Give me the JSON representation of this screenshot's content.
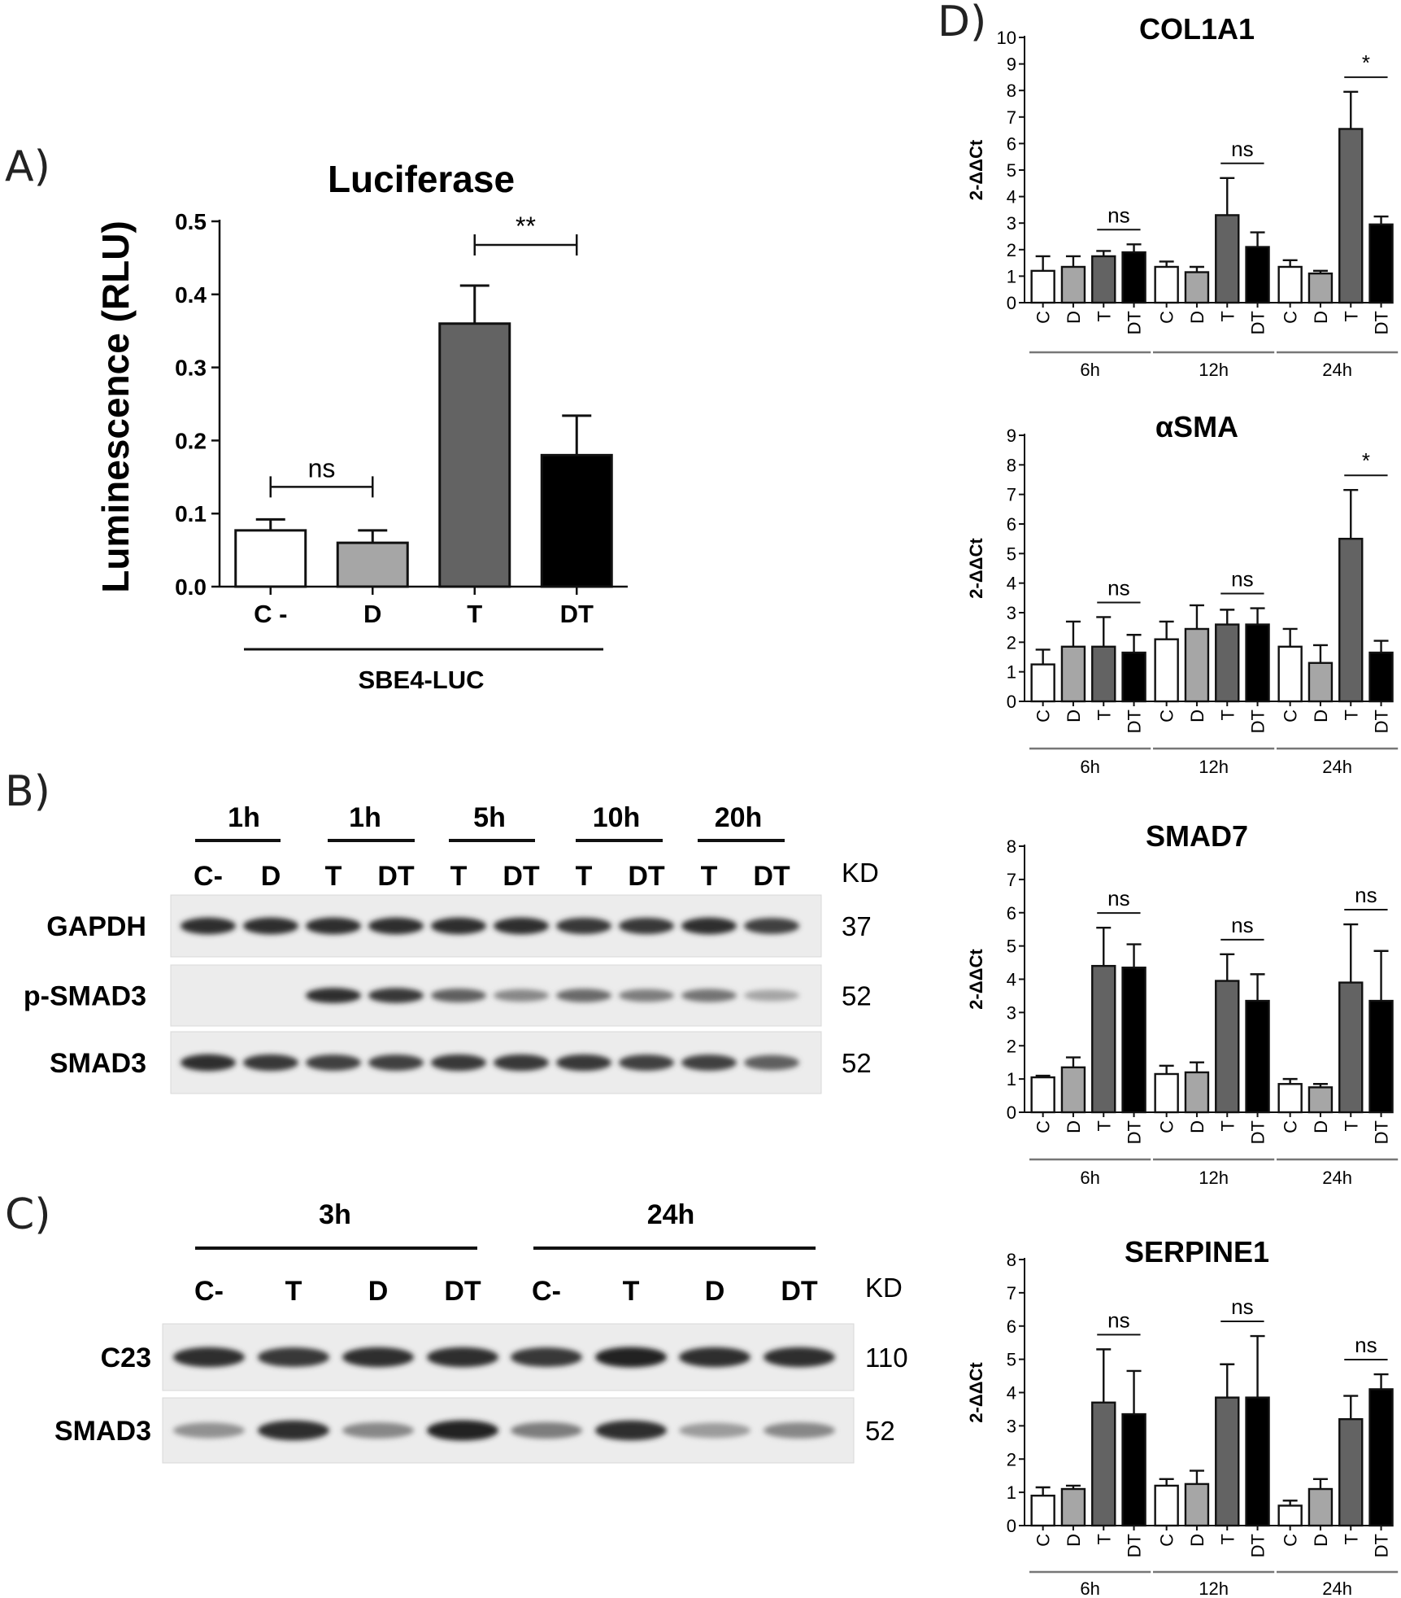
{
  "panels": {
    "A": "A)",
    "B": "B)",
    "C": "C)",
    "D": "D)"
  },
  "chart_data": [
    {
      "type": "bar",
      "panel": "A",
      "title": "Luciferase",
      "ylabel": "Luminescence (RLU)",
      "group_label": "SBE4-LUC",
      "ylim": [
        0,
        0.5
      ],
      "yticks": [
        "0.0",
        "0.1",
        "0.2",
        "0.3",
        "0.4",
        "0.5"
      ],
      "categories": [
        "C -",
        "D",
        "T",
        "DT"
      ],
      "values": [
        0.077,
        0.06,
        0.36,
        0.18
      ],
      "errors": [
        0.015,
        0.017,
        0.052,
        0.054
      ],
      "colors": [
        "#ffffff",
        "#a6a6a6",
        "#636363",
        "#000000"
      ],
      "significance": [
        {
          "from": 0,
          "to": 1,
          "label": "ns"
        },
        {
          "from": 2,
          "to": 3,
          "label": "**"
        }
      ]
    },
    {
      "type": "bar",
      "panel": "D",
      "title": "COL1A1",
      "ylabel": "2-ΔΔCt",
      "ylim": [
        0,
        10
      ],
      "yticks": [
        "0",
        "1",
        "2",
        "3",
        "4",
        "5",
        "6",
        "7",
        "8",
        "9",
        "10"
      ],
      "categories": [
        "C",
        "D",
        "T",
        "DT",
        "C",
        "D",
        "T",
        "DT",
        "C",
        "D",
        "T",
        "DT"
      ],
      "groups": [
        "6h",
        "12h",
        "24h"
      ],
      "values": [
        1.2,
        1.35,
        1.75,
        1.9,
        1.35,
        1.15,
        3.3,
        2.1,
        1.35,
        1.1,
        6.55,
        2.95
      ],
      "errors": [
        0.55,
        0.4,
        0.2,
        0.3,
        0.2,
        0.2,
        1.4,
        0.55,
        0.25,
        0.1,
        1.4,
        0.3
      ],
      "colors": [
        "#ffffff",
        "#a6a6a6",
        "#636363",
        "#000000"
      ],
      "significance": [
        {
          "from": 2,
          "to": 3,
          "label": "ns"
        },
        {
          "from": 6,
          "to": 7,
          "label": "ns"
        },
        {
          "from": 10,
          "to": 11,
          "label": "*"
        }
      ]
    },
    {
      "type": "bar",
      "panel": "D",
      "title": "αSMA",
      "ylabel": "2-ΔΔCt",
      "ylim": [
        0,
        9
      ],
      "yticks": [
        "0",
        "1",
        "2",
        "3",
        "4",
        "5",
        "6",
        "7",
        "8",
        "9"
      ],
      "categories": [
        "C",
        "D",
        "T",
        "DT",
        "C",
        "D",
        "T",
        "DT",
        "C",
        "D",
        "T",
        "DT"
      ],
      "groups": [
        "6h",
        "12h",
        "24h"
      ],
      "values": [
        1.25,
        1.85,
        1.85,
        1.65,
        2.1,
        2.45,
        2.6,
        2.6,
        1.85,
        1.3,
        5.5,
        1.65
      ],
      "errors": [
        0.5,
        0.85,
        1.0,
        0.6,
        0.6,
        0.8,
        0.5,
        0.55,
        0.6,
        0.6,
        1.65,
        0.4
      ],
      "colors": [
        "#ffffff",
        "#a6a6a6",
        "#636363",
        "#000000"
      ],
      "significance": [
        {
          "from": 2,
          "to": 3,
          "label": "ns"
        },
        {
          "from": 6,
          "to": 7,
          "label": "ns"
        },
        {
          "from": 10,
          "to": 11,
          "label": "*"
        }
      ]
    },
    {
      "type": "bar",
      "panel": "D",
      "title": "SMAD7",
      "ylabel": "2-ΔΔCt",
      "ylim": [
        0,
        8
      ],
      "yticks": [
        "0",
        "1",
        "2",
        "3",
        "4",
        "5",
        "6",
        "7",
        "8"
      ],
      "categories": [
        "C",
        "D",
        "T",
        "DT",
        "C",
        "D",
        "T",
        "DT",
        "C",
        "D",
        "T",
        "DT"
      ],
      "groups": [
        "6h",
        "12h",
        "24h"
      ],
      "values": [
        1.05,
        1.35,
        4.4,
        4.35,
        1.15,
        1.2,
        3.95,
        3.35,
        0.85,
        0.75,
        3.9,
        3.35
      ],
      "errors": [
        0.05,
        0.3,
        1.15,
        0.7,
        0.25,
        0.3,
        0.8,
        0.8,
        0.15,
        0.1,
        1.75,
        1.5
      ],
      "colors": [
        "#ffffff",
        "#a6a6a6",
        "#636363",
        "#000000"
      ],
      "significance": [
        {
          "from": 2,
          "to": 3,
          "label": "ns"
        },
        {
          "from": 6,
          "to": 7,
          "label": "ns"
        },
        {
          "from": 10,
          "to": 11,
          "label": "ns"
        }
      ]
    },
    {
      "type": "bar",
      "panel": "D",
      "title": "SERPINE1",
      "ylabel": "2-ΔΔCt",
      "ylim": [
        0,
        8
      ],
      "yticks": [
        "0",
        "1",
        "2",
        "3",
        "4",
        "5",
        "6",
        "7",
        "8"
      ],
      "categories": [
        "C",
        "D",
        "T",
        "DT",
        "C",
        "D",
        "T",
        "DT",
        "C",
        "D",
        "T",
        "DT"
      ],
      "groups": [
        "6h",
        "12h",
        "24h"
      ],
      "values": [
        0.9,
        1.1,
        3.7,
        3.35,
        1.2,
        1.25,
        3.85,
        3.85,
        0.6,
        1.1,
        3.2,
        4.1
      ],
      "errors": [
        0.25,
        0.1,
        1.6,
        1.3,
        0.2,
        0.4,
        1.0,
        1.85,
        0.15,
        0.3,
        0.7,
        0.45
      ],
      "colors": [
        "#ffffff",
        "#a6a6a6",
        "#636363",
        "#000000"
      ],
      "significance": [
        {
          "from": 2,
          "to": 3,
          "label": "ns"
        },
        {
          "from": 6,
          "to": 7,
          "label": "ns"
        },
        {
          "from": 10,
          "to": 11,
          "label": "ns"
        }
      ]
    }
  ],
  "western_B": {
    "timepoints": [
      "1h",
      "1h",
      "5h",
      "10h",
      "20h"
    ],
    "lanes": [
      "C-",
      "D",
      "T",
      "DT",
      "T",
      "DT",
      "T",
      "DT",
      "T",
      "DT"
    ],
    "kd_header": "KD",
    "rows": [
      {
        "label": "GAPDH",
        "kd": "37",
        "intensity": [
          0.85,
          0.85,
          0.85,
          0.85,
          0.85,
          0.85,
          0.8,
          0.8,
          0.85,
          0.75
        ]
      },
      {
        "label": "p-SMAD3",
        "kd": "52",
        "intensity": [
          0.0,
          0.0,
          0.85,
          0.8,
          0.6,
          0.4,
          0.55,
          0.45,
          0.5,
          0.25
        ]
      },
      {
        "label": "SMAD3",
        "kd": "52",
        "intensity": [
          0.85,
          0.8,
          0.75,
          0.75,
          0.8,
          0.8,
          0.8,
          0.75,
          0.75,
          0.6
        ]
      }
    ]
  },
  "western_C": {
    "timepoints": [
      "3h",
      "24h"
    ],
    "lanes": [
      "C-",
      "T",
      "D",
      "DT",
      "C-",
      "T",
      "D",
      "DT"
    ],
    "kd_header": "KD",
    "rows": [
      {
        "label": "C23",
        "kd": "110",
        "intensity": [
          0.85,
          0.8,
          0.85,
          0.85,
          0.8,
          0.9,
          0.85,
          0.85
        ]
      },
      {
        "label": "SMAD3",
        "kd": "52",
        "intensity": [
          0.35,
          0.85,
          0.4,
          0.9,
          0.45,
          0.85,
          0.3,
          0.4
        ]
      }
    ]
  }
}
